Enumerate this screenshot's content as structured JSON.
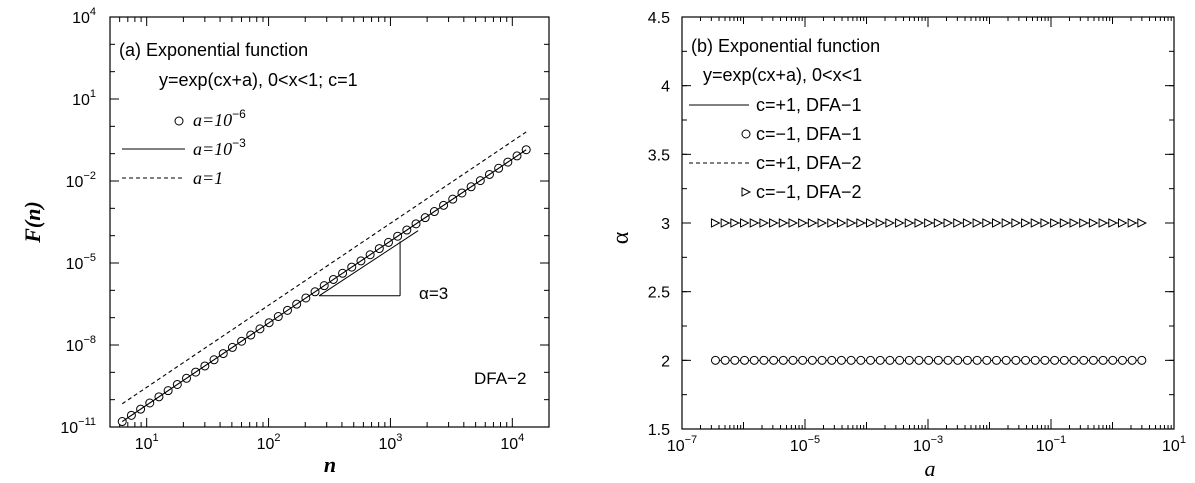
{
  "chart_data": [
    {
      "type": "line",
      "panel": "a",
      "scale": "log-log",
      "xlabel": "n",
      "ylabel": "F(n)",
      "xlim": [
        5,
        20000
      ],
      "ylim": [
        1e-11,
        10000.0
      ],
      "x_ticks": [
        {
          "value": 10,
          "base": "10",
          "exp": "1"
        },
        {
          "value": 100,
          "base": "10",
          "exp": "2"
        },
        {
          "value": 1000,
          "base": "10",
          "exp": "3"
        },
        {
          "value": 10000,
          "base": "10",
          "exp": "4"
        }
      ],
      "y_ticks": [
        {
          "value": 1e-11,
          "base": "10",
          "exp": "−11"
        },
        {
          "value": 1e-08,
          "base": "10",
          "exp": "−8"
        },
        {
          "value": 1e-05,
          "base": "10",
          "exp": "−5"
        },
        {
          "value": 0.01,
          "base": "10",
          "exp": "−2"
        },
        {
          "value": 10,
          "base": "10",
          "exp": "1"
        },
        {
          "value": 10000,
          "base": "10",
          "exp": "4"
        }
      ],
      "legend": {
        "title": "(a) Exponential function",
        "subtitle": "y=exp(cx+a), 0<x<1; c=1",
        "placement": "top-left",
        "entries": [
          {
            "marker": "circle",
            "label": "a=10",
            "exp": "−6"
          },
          {
            "marker": "solid",
            "label": "a=10",
            "exp": "−3"
          },
          {
            "marker": "dashed",
            "label": "a=1"
          }
        ]
      },
      "series": [
        {
          "name": "a=10−6",
          "style": "circle",
          "x_start": 6.3,
          "x_end": 13000,
          "points": 45,
          "logy_at_xstart": -10.8,
          "slope": 3
        },
        {
          "name": "a=10−3",
          "style": "solid",
          "x_start": 6.3,
          "x_end": 13000,
          "logy_at_xstart": -10.8,
          "slope": 3
        },
        {
          "name": "a=1",
          "style": "dashed",
          "x_start": 6.3,
          "x_end": 13000,
          "logy_at_xstart": -10.15,
          "slope": 3
        }
      ],
      "slope_triangle": {
        "label": "α=3",
        "x_from": 260,
        "x_to": 1200,
        "slope": 3
      },
      "annotation": "DFA−2"
    },
    {
      "type": "scatter",
      "panel": "b",
      "xscale": "log",
      "xlabel": "a",
      "ylabel": "α",
      "xlim": [
        1e-07,
        10
      ],
      "ylim": [
        1.5,
        4.5
      ],
      "x_ticks": [
        {
          "value": 1e-07,
          "base": "10",
          "exp": "−7"
        },
        {
          "value": 1e-05,
          "base": "10",
          "exp": "−5"
        },
        {
          "value": 0.001,
          "base": "10",
          "exp": "−3"
        },
        {
          "value": 0.1,
          "base": "10",
          "exp": "−1"
        },
        {
          "value": 10,
          "base": "10",
          "exp": "1"
        }
      ],
      "y_ticks": [
        "1.5",
        "2",
        "2.5",
        "3",
        "3.5",
        "4",
        "4.5"
      ],
      "legend": {
        "title": "(b) Exponential function",
        "subtitle": "y=exp(cx+a), 0<x<1",
        "placement": "top-left",
        "entries": [
          {
            "marker": "solid",
            "label": "c=+1, DFA−1"
          },
          {
            "marker": "circle",
            "label": "c=−1, DFA−1"
          },
          {
            "marker": "dashed",
            "label": "c=+1, DFA−2"
          },
          {
            "marker": "triangle",
            "label": "c=−1, DFA−2"
          }
        ]
      },
      "series": [
        {
          "name": "c=+1, DFA−1",
          "style": "solid",
          "value": 2
        },
        {
          "name": "c=−1, DFA−1",
          "style": "circle",
          "value": 2
        },
        {
          "name": "c=+1, DFA−2",
          "style": "dashed",
          "value": 3
        },
        {
          "name": "c=−1, DFA−2",
          "style": "triangle",
          "value": 3
        }
      ],
      "x_range_points": [
        3.5e-07,
        3
      ],
      "points": 45
    }
  ]
}
